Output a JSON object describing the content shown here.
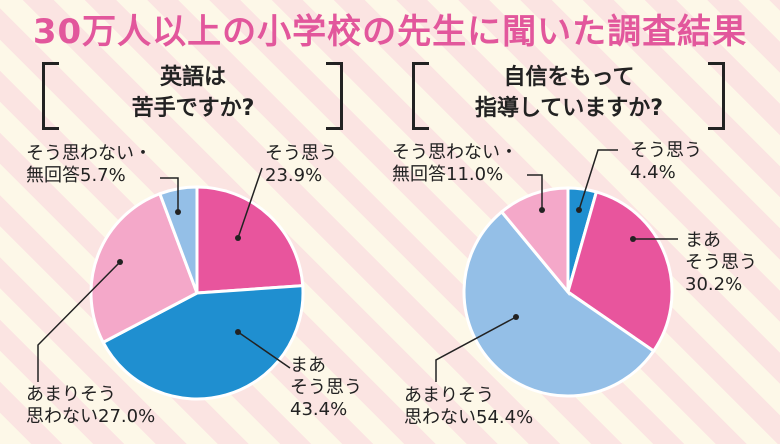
{
  "title": "30万人以上の小学校の先生に聞いた調査結果",
  "chart_data": [
    {
      "type": "pie",
      "title_lines": [
        "英語は",
        "苦手ですか?"
      ],
      "slices": [
        {
          "label_lines": [
            "そう思う",
            "23.9%"
          ],
          "value": 23.9,
          "color": "#e8559d"
        },
        {
          "label_lines": [
            "まあ",
            "そう思う",
            "43.4%"
          ],
          "value": 43.4,
          "color": "#1f8fd0"
        },
        {
          "label_lines": [
            "あまりそう",
            "思わない27.0%"
          ],
          "value": 27.0,
          "color": "#f4a8c9"
        },
        {
          "label_lines": [
            "そう思わない・",
            "無回答5.7%"
          ],
          "value": 5.7,
          "color": "#94bfe7"
        }
      ]
    },
    {
      "type": "pie",
      "title_lines": [
        "自信をもって",
        "指導していますか?"
      ],
      "slices": [
        {
          "label_lines": [
            "そう思う",
            "4.4%"
          ],
          "value": 4.4,
          "color": "#1f8fd0"
        },
        {
          "label_lines": [
            "まあ",
            "そう思う",
            "30.2%"
          ],
          "value": 30.2,
          "color": "#e8559d"
        },
        {
          "label_lines": [
            "あまりそう",
            "思わない54.4%"
          ],
          "value": 54.4,
          "color": "#94bfe7"
        },
        {
          "label_lines": [
            "そう思わない・",
            "無回答11.0%"
          ],
          "value": 11.0,
          "color": "#f4a8c9"
        }
      ]
    }
  ]
}
